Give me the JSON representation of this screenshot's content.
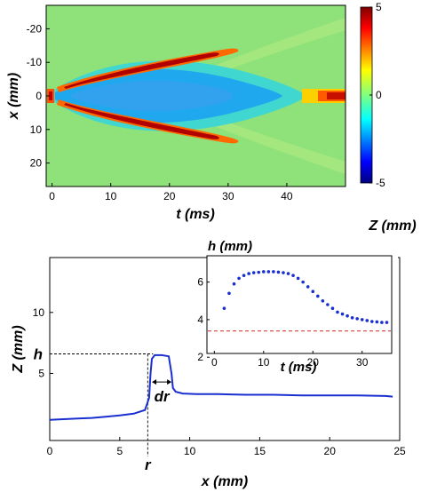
{
  "chart_data": [
    {
      "type": "heatmap",
      "xlabel": "t (ms)",
      "ylabel": "x (mm)",
      "xlim": [
        -1,
        50
      ],
      "ylim": [
        -27,
        27
      ],
      "y_inverted": true,
      "xticks": [
        "0",
        "10",
        "20",
        "30",
        "40"
      ],
      "yticks": [
        "-20",
        "-10",
        "0",
        "10",
        "20"
      ],
      "colorbar": {
        "label": "Z (mm)",
        "range": [
          -5,
          5
        ],
        "ticks": [
          "5",
          "0",
          "-5"
        ],
        "colormap": "jet"
      },
      "description_values": {
        "background_z": 0.3,
        "cavity_core_z": -2,
        "crest_peak_z": 5,
        "crest_t_range": [
          1,
          33
        ],
        "crest_x_start": 4,
        "crest_x_end": 12
      }
    },
    {
      "type": "line",
      "xlabel": "x (mm)",
      "ylabel": "Z (mm)",
      "xlim": [
        0,
        25
      ],
      "ylim": [
        -0.5,
        14.5
      ],
      "xticks": [
        "0",
        "5",
        "10",
        "15",
        "20",
        "25"
      ],
      "yticks": [
        "5",
        "10"
      ],
      "series": [
        {
          "color": "#1a2fcf",
          "x": [
            0.0,
            1.0,
            2.0,
            3.0,
            4.0,
            5.0,
            6.0,
            6.8,
            7.1,
            7.2,
            7.3,
            7.5,
            8.0,
            8.5,
            8.7,
            8.8,
            9.0,
            9.5,
            10.5,
            12.0,
            14.0,
            16.0,
            18.0,
            20.0,
            22.0,
            24.0,
            24.5
          ],
          "values": [
            1.2,
            1.25,
            1.3,
            1.35,
            1.45,
            1.55,
            1.7,
            2.0,
            3.0,
            5.0,
            6.2,
            6.5,
            6.5,
            6.4,
            5.0,
            3.8,
            3.5,
            3.35,
            3.3,
            3.3,
            3.25,
            3.25,
            3.2,
            3.2,
            3.2,
            3.15,
            3.1
          ]
        }
      ],
      "annotations": {
        "h_label": "h",
        "h_value": 6.6,
        "r_label": "r",
        "r_value": 7.0,
        "dr_label": "dr",
        "dr_from": 7.3,
        "dr_to": 8.7
      },
      "inset": {
        "type": "scatter",
        "xlabel": "t (ms)",
        "ylabel": "h (mm)",
        "xlim": [
          -1.5,
          36
        ],
        "ylim": [
          2.2,
          7.4
        ],
        "xticks": [
          "0",
          "10",
          "20",
          "30"
        ],
        "yticks": [
          "2",
          "4",
          "6"
        ],
        "series": [
          {
            "color": "#1a2fcf",
            "x": [
              2,
              3,
              4,
              5,
              6,
              7,
              8,
              9,
              10,
              11,
              12,
              13,
              14,
              15,
              16,
              17,
              18,
              19,
              20,
              21,
              22,
              23,
              24,
              25,
              26,
              27,
              28,
              29,
              30,
              31,
              32,
              33,
              34,
              35
            ],
            "values": [
              4.6,
              5.4,
              5.9,
              6.2,
              6.35,
              6.45,
              6.5,
              6.52,
              6.55,
              6.55,
              6.55,
              6.53,
              6.5,
              6.45,
              6.35,
              6.2,
              6.0,
              5.75,
              5.5,
              5.25,
              5.0,
              4.8,
              4.6,
              4.4,
              4.3,
              4.2,
              4.1,
              4.05,
              4.0,
              3.95,
              3.9,
              3.88,
              3.85,
              3.85
            ]
          }
        ],
        "reference_line": {
          "value": 3.4,
          "color": "#d9534f"
        }
      }
    }
  ]
}
